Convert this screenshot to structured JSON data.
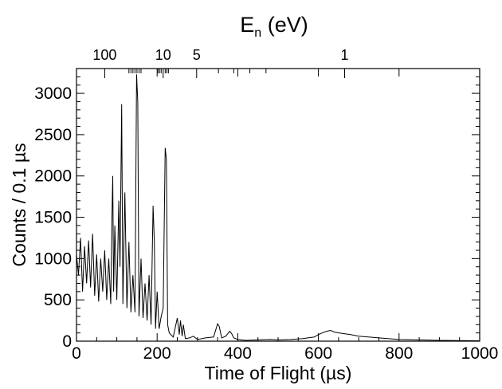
{
  "chart_data": {
    "type": "line",
    "title": "",
    "xlabel": "Time of Flight (µs)",
    "ylabel": "Counts / 0.1 µs",
    "x2label_main": "E",
    "x2label_sub": "n",
    "x2label_rest": " (eV)",
    "xlim": [
      0,
      1000
    ],
    "ylim": [
      0,
      3300
    ],
    "x_ticks": [
      0,
      200,
      400,
      600,
      800,
      1000
    ],
    "y_ticks": [
      0,
      500,
      1000,
      1500,
      2000,
      2500,
      3000
    ],
    "x_tick_labels": [
      "0",
      "200",
      "400",
      "600",
      "800",
      "1000"
    ],
    "y_tick_labels": [
      "0",
      "500",
      "1000",
      "1500",
      "2000",
      "2500",
      "3000"
    ],
    "top_axis_labels": [
      {
        "label": "100",
        "tof": 70
      },
      {
        "label": "10",
        "tof": 215
      },
      {
        "label": "5",
        "tof": 298
      },
      {
        "label": "1",
        "tof": 665
      }
    ],
    "grid": false,
    "series": [
      {
        "color": "#000000",
        "x": [
          0,
          5,
          10,
          15,
          20,
          25,
          30,
          35,
          40,
          45,
          50,
          55,
          60,
          65,
          70,
          75,
          80,
          85,
          88,
          90,
          92,
          95,
          100,
          105,
          108,
          112,
          115,
          120,
          125,
          130,
          135,
          140,
          145,
          149,
          152,
          155,
          160,
          165,
          170,
          175,
          180,
          185,
          190,
          193,
          196,
          200,
          205,
          210,
          215,
          220,
          223,
          226,
          230,
          240,
          250,
          255,
          258,
          262,
          265,
          270,
          280,
          290,
          300,
          320,
          340,
          350,
          354,
          360,
          370,
          380,
          385,
          390,
          400,
          420,
          450,
          480,
          500,
          530,
          560,
          590,
          600,
          610,
          620,
          630,
          640,
          650,
          680,
          700,
          750,
          800,
          850,
          900,
          950,
          1000
        ],
        "y": [
          1050,
          800,
          1250,
          600,
          1150,
          700,
          1220,
          650,
          1300,
          550,
          1050,
          480,
          1000,
          600,
          1100,
          500,
          1000,
          450,
          1500,
          2000,
          600,
          1400,
          500,
          1700,
          900,
          2870,
          450,
          1800,
          400,
          1200,
          350,
          800,
          350,
          3230,
          2900,
          300,
          1000,
          280,
          700,
          250,
          800,
          200,
          1640,
          1200,
          150,
          600,
          150,
          300,
          400,
          2340,
          2200,
          200,
          100,
          50,
          280,
          80,
          250,
          60,
          200,
          30,
          40,
          60,
          20,
          40,
          50,
          210,
          180,
          40,
          60,
          120,
          90,
          40,
          20,
          10,
          15,
          20,
          15,
          20,
          30,
          50,
          80,
          100,
          120,
          130,
          110,
          100,
          80,
          60,
          40,
          20,
          15,
          10,
          8,
          5
        ]
      }
    ]
  }
}
